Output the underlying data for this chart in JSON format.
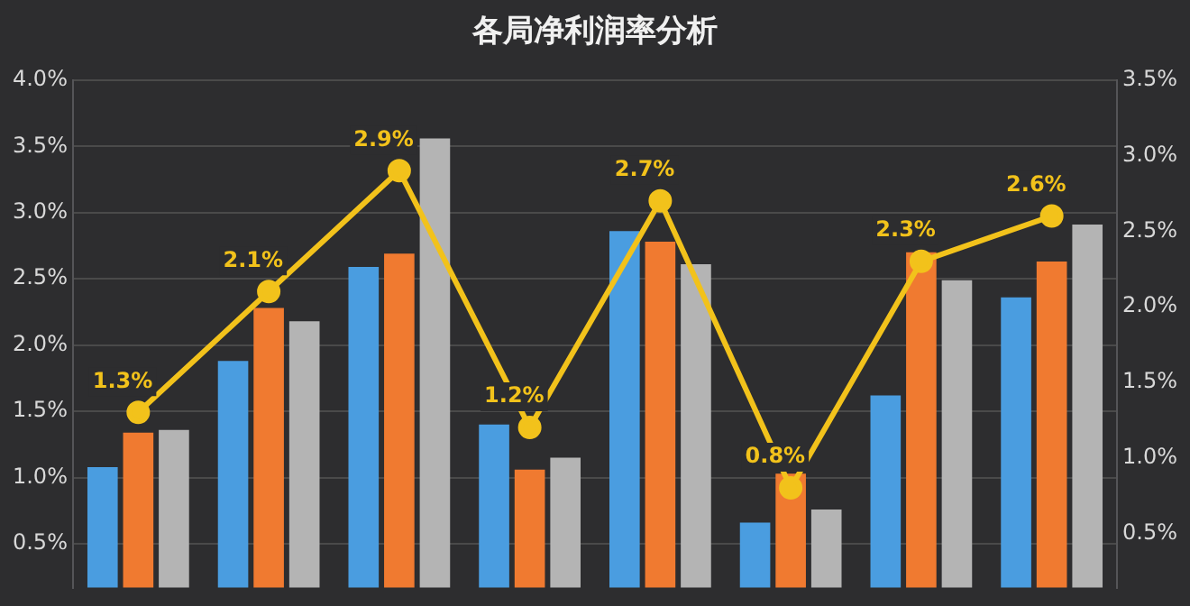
{
  "chart_data": {
    "type": "bar",
    "title": "各局净利润率分析",
    "categories": [
      null,
      null,
      null,
      null,
      null,
      null,
      null,
      null
    ],
    "series": [
      {
        "color": "#4a9de0",
        "values": [
          1.08,
          1.88,
          2.59,
          1.4,
          2.86,
          0.66,
          1.62,
          2.36
        ]
      },
      {
        "color": "#f07a30",
        "values": [
          1.34,
          2.28,
          2.69,
          1.06,
          2.78,
          1.03,
          2.7,
          2.63
        ]
      },
      {
        "color": "#b4b4b4",
        "values": [
          1.36,
          2.18,
          3.56,
          1.15,
          2.61,
          0.76,
          2.49,
          2.91
        ]
      },
      {
        "type": "line",
        "axis": "y2",
        "color": "#f2c21b",
        "values": [
          1.3,
          2.1,
          2.9,
          1.2,
          2.7,
          0.8,
          2.3,
          2.6
        ],
        "value_labels": [
          "1.3%",
          "2.1%",
          "2.9%",
          "1.2%",
          "2.7%",
          "0.8%",
          "2.3%",
          "2.6%"
        ]
      }
    ],
    "ylim": [
      0.17,
      4.0
    ],
    "yticks": [
      {
        "value": 0.5,
        "label": "0.5%"
      },
      {
        "value": 1.0,
        "label": "1.0%"
      },
      {
        "value": 1.5,
        "label": "1.5%"
      },
      {
        "value": 2.0,
        "label": "2.0%"
      },
      {
        "value": 2.5,
        "label": "2.5%"
      },
      {
        "value": 3.0,
        "label": "3.0%"
      },
      {
        "value": 3.5,
        "label": "3.5%"
      },
      {
        "value": 4.0,
        "label": "4.0%"
      }
    ],
    "y2lim": [
      0.14,
      3.5
    ],
    "y2ticks": [
      {
        "value": 0.5,
        "label": "0.5%"
      },
      {
        "value": 1.0,
        "label": "1.0%"
      },
      {
        "value": 1.5,
        "label": "1.5%"
      },
      {
        "value": 2.0,
        "label": "2.0%"
      },
      {
        "value": 2.5,
        "label": "2.5%"
      },
      {
        "value": 3.0,
        "label": "3.0%"
      },
      {
        "value": 3.5,
        "label": "3.5%"
      }
    ],
    "grid": "y",
    "legend": false,
    "marker": "circle",
    "line_style": "solid"
  }
}
